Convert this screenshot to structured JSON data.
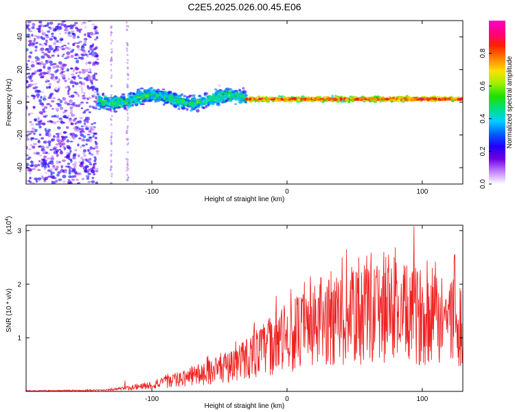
{
  "title": "C2E5.2025.026.00.45.E06",
  "colors": {
    "line": "#ee2222",
    "spectro_background": "#ffffff"
  },
  "chart_data": [
    {
      "type": "heatmap",
      "name": "spectrogram",
      "xlabel": "Height of straight line (km)",
      "ylabel": "Frequency (Hz)",
      "xlim": [
        -193,
        130
      ],
      "ylim": [
        -50,
        50
      ],
      "x_ticks": [
        -100,
        0,
        100
      ],
      "y_ticks": [
        -40,
        -20,
        0,
        20,
        40
      ],
      "colorbar": {
        "label": "Normalized spectral amplitude",
        "range": [
          0,
          1
        ],
        "ticks": [
          "0.0",
          "0.2",
          "0.4",
          "0.6",
          "0.8"
        ],
        "stops": [
          "#ffffff",
          "#c080ff",
          "#7000e0",
          "#2000ff",
          "#0060ff",
          "#00d0ff",
          "#00e080",
          "#20e000",
          "#a0f000",
          "#ffe000",
          "#ff8000",
          "#ff2000",
          "#ff0080",
          "#ff00c0"
        ]
      },
      "description_trend": [
        {
          "x_range": [
            -193,
            -140
          ],
          "freq_center": 0,
          "freq_spread": 50,
          "amplitude": 0.15,
          "pattern": "scattered noise"
        },
        {
          "x_range": [
            -140,
            -30
          ],
          "freq_center": 2,
          "freq_spread": 8,
          "amplitude": 0.4,
          "pattern": "wavering band"
        },
        {
          "x_range": [
            -30,
            130
          ],
          "freq_center": 2,
          "freq_spread": 2,
          "amplitude": 0.85,
          "pattern": "narrow line"
        }
      ]
    },
    {
      "type": "line",
      "name": "snr",
      "xlabel": "Height of straight line (km)",
      "ylabel": "SNR (10 * v/v)",
      "y_multiplier_label": "(x10",
      "y_multiplier_exp": "4",
      "y_multiplier_close": ")",
      "xlim": [
        -193,
        130
      ],
      "ylim": [
        0,
        3.1
      ],
      "x_ticks": [
        -100,
        0,
        100
      ],
      "y_ticks": [
        1,
        2,
        3
      ],
      "envelope": [
        {
          "x": -193,
          "y": 0.01
        },
        {
          "x": -140,
          "y": 0.02
        },
        {
          "x": -120,
          "y": 0.05
        },
        {
          "x": -100,
          "y": 0.12
        },
        {
          "x": -80,
          "y": 0.22
        },
        {
          "x": -60,
          "y": 0.35
        },
        {
          "x": -40,
          "y": 0.5
        },
        {
          "x": -20,
          "y": 0.75
        },
        {
          "x": 0,
          "y": 1.0
        },
        {
          "x": 20,
          "y": 1.2
        },
        {
          "x": 40,
          "y": 1.35
        },
        {
          "x": 60,
          "y": 1.4
        },
        {
          "x": 80,
          "y": 1.45
        },
        {
          "x": 100,
          "y": 1.4
        },
        {
          "x": 120,
          "y": 1.35
        },
        {
          "x": 130,
          "y": 1.3
        }
      ],
      "peaks": [
        {
          "x": -120,
          "y": 0.2
        },
        {
          "x": -45,
          "y": 0.65
        },
        {
          "x": -8,
          "y": 1.78
        },
        {
          "x": 25,
          "y": 2.12
        },
        {
          "x": 44,
          "y": 2.65
        },
        {
          "x": 53,
          "y": 2.5
        },
        {
          "x": 75,
          "y": 2.55
        },
        {
          "x": 94,
          "y": 3.08
        },
        {
          "x": 124,
          "y": 2.55
        }
      ]
    }
  ]
}
